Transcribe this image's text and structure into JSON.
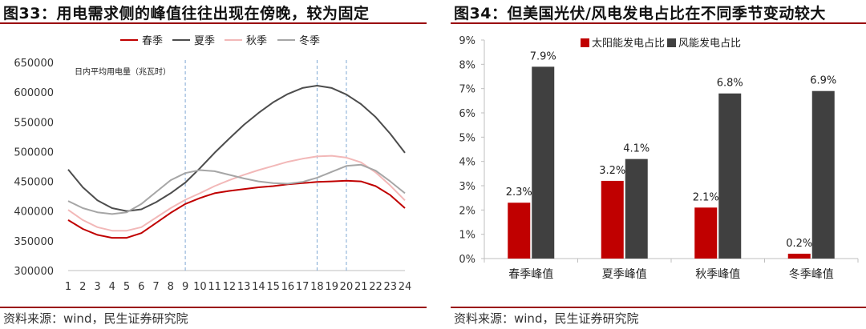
{
  "figure_left": {
    "title": "图33：用电需求侧的峰值往往出现在傍晚，较为固定",
    "source": "资料来源：wind，民生证券研究院"
  },
  "figure_right": {
    "title": "图34：但美国光伏/风电发电占比在不同季节变动较大",
    "source": "资料来源：wind，民生证券研究院"
  },
  "chart_data": [
    {
      "type": "line",
      "title": "",
      "ylabel": "日内平均用电量（兆瓦时）",
      "xlabel": "",
      "x": [
        1,
        2,
        3,
        4,
        5,
        6,
        7,
        8,
        9,
        10,
        11,
        12,
        13,
        14,
        15,
        16,
        17,
        18,
        19,
        20,
        21,
        22,
        23,
        24
      ],
      "ylim": [
        300000,
        650000
      ],
      "yticks": [
        300000,
        350000,
        400000,
        450000,
        500000,
        550000,
        600000,
        650000
      ],
      "ytick_labels": [
        "300000",
        "350000",
        "400000",
        "450000",
        "500000",
        "550000",
        "600000",
        "650000"
      ],
      "vlines": [
        9,
        18,
        20
      ],
      "grid": false,
      "legend": "top",
      "series": [
        {
          "name": "春季",
          "color": "#c00000",
          "values": [
            385000,
            370000,
            360000,
            355000,
            355000,
            363000,
            380000,
            397000,
            412000,
            422000,
            430000,
            434000,
            437000,
            440000,
            442000,
            445000,
            447000,
            449000,
            450000,
            451000,
            450000,
            442000,
            427000,
            405000
          ]
        },
        {
          "name": "夏季",
          "color": "#4d4d4d",
          "values": [
            470000,
            440000,
            418000,
            405000,
            400000,
            403000,
            415000,
            430000,
            448000,
            472000,
            498000,
            522000,
            545000,
            565000,
            583000,
            597000,
            607000,
            611000,
            607000,
            596000,
            580000,
            558000,
            530000,
            498000
          ]
        },
        {
          "name": "秋季",
          "color": "#f2b8b8",
          "values": [
            402000,
            385000,
            373000,
            367000,
            367000,
            373000,
            389000,
            405000,
            419000,
            430000,
            442000,
            452000,
            461000,
            469000,
            476000,
            483000,
            488000,
            492000,
            493000,
            490000,
            482000,
            465000,
            443000,
            418000
          ]
        },
        {
          "name": "冬季",
          "color": "#a6a6a6",
          "values": [
            417000,
            405000,
            398000,
            395000,
            398000,
            412000,
            432000,
            452000,
            464000,
            469000,
            467000,
            461000,
            455000,
            450000,
            447000,
            446000,
            449000,
            456000,
            466000,
            476000,
            478000,
            468000,
            450000,
            430000
          ]
        }
      ]
    },
    {
      "type": "bar",
      "title": "",
      "xlabel": "",
      "ylabel": "",
      "categories": [
        "春季峰值",
        "夏季峰值",
        "秋季峰值",
        "冬季峰值"
      ],
      "ylim": [
        0,
        9
      ],
      "yticks": [
        0,
        1,
        2,
        3,
        4,
        5,
        6,
        7,
        8,
        9
      ],
      "ytick_labels": [
        "0%",
        "1%",
        "2%",
        "3%",
        "4%",
        "5%",
        "6%",
        "7%",
        "8%",
        "9%"
      ],
      "grid": false,
      "legend": "top",
      "series": [
        {
          "name": "太阳能发电占比",
          "color": "#c00000",
          "values": [
            2.3,
            3.2,
            2.1,
            0.2
          ],
          "labels": [
            "2.3%",
            "3.2%",
            "2.1%",
            "0.2%"
          ]
        },
        {
          "name": "风能发电占比",
          "color": "#404040",
          "values": [
            7.9,
            4.1,
            6.8,
            6.9
          ],
          "labels": [
            "7.9%",
            "4.1%",
            "6.8%",
            "6.9%"
          ]
        }
      ]
    }
  ]
}
